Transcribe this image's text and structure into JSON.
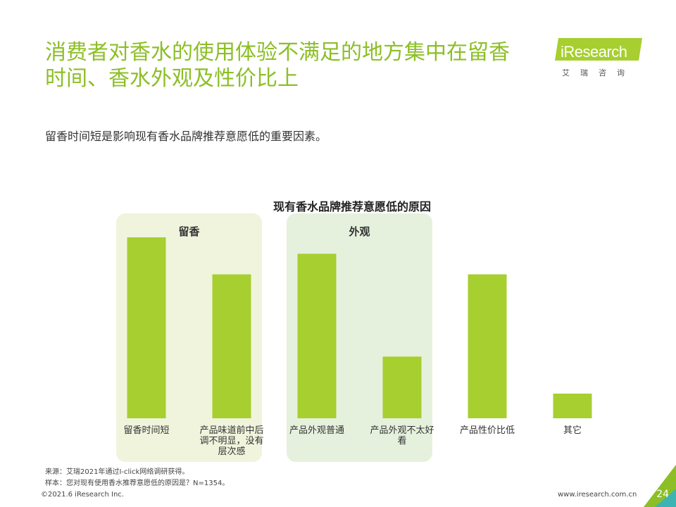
{
  "header": {
    "title_line1": "消费者对香水的使用体验不满足的地方集中在留香",
    "title_line2": "时间、香水外观及性价比上",
    "subtitle": "留香时间短是影响现有香水品牌推荐意愿低的重要因素。"
  },
  "logo": {
    "brand": "iResearch",
    "cn": "艾瑞咨询",
    "icon": "iresearch-logo"
  },
  "colors": {
    "accent": "#8cbf26",
    "bar": "#a6cf2f",
    "group_light": "#f0f4dc",
    "group_mint": "#e6f1dd",
    "teal": "#3db4b4"
  },
  "chart_data": {
    "type": "bar",
    "title": "现有香水品牌推荐意愿低的原因",
    "categories": [
      "留香时间短",
      "产品味道前中后调不明显，没有层次感",
      "产品外观普通",
      "产品外观不太好看",
      "产品性价比低",
      "其它"
    ],
    "values": [
      44,
      35,
      40,
      15,
      35,
      6
    ],
    "ylim": [
      0,
      50
    ],
    "xlabel": "",
    "ylabel": "",
    "grid": false,
    "groups": [
      {
        "label": "留香",
        "start": 0,
        "end": 1
      },
      {
        "label": "外观",
        "start": 2,
        "end": 3
      }
    ]
  },
  "notes": {
    "source": "来源：艾瑞2021年通过I-click网络调研获得。",
    "sample": "样本：您对现有使用香水推荐意愿低的原因是？N=1354。"
  },
  "footer": {
    "copyright": "©2021.6 iResearch Inc.",
    "url": "www.iresearch.com.cn",
    "page": "24"
  }
}
